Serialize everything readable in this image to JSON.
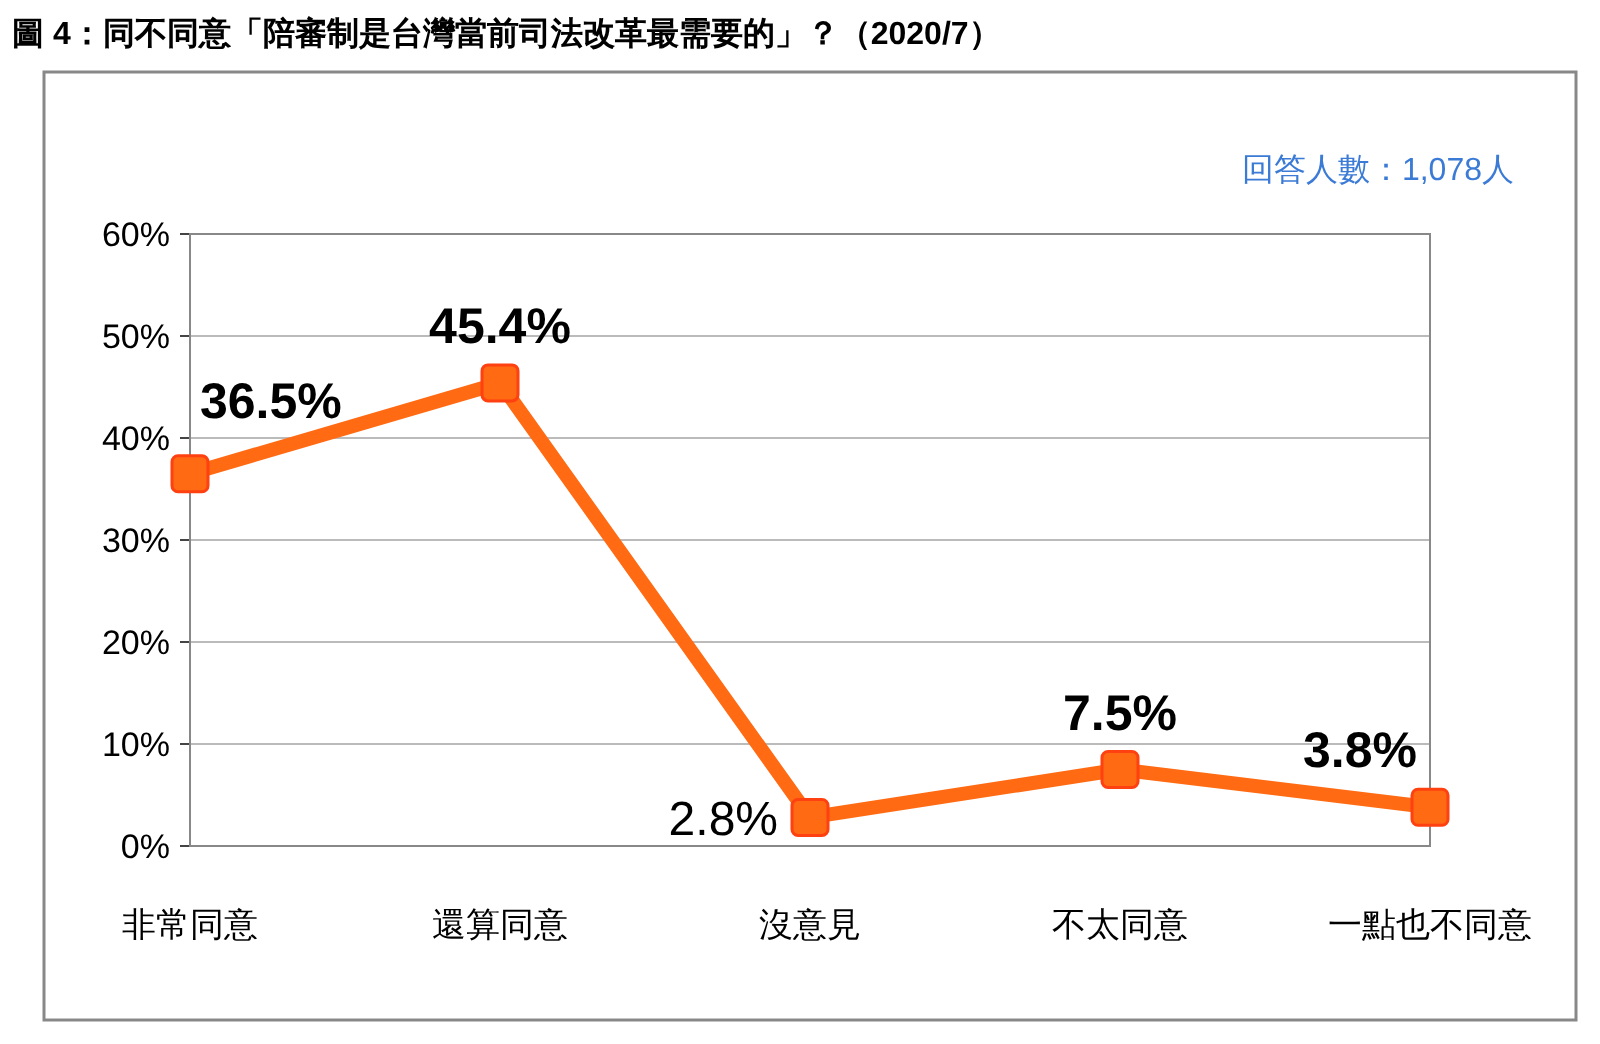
{
  "chart_data": {
    "type": "line",
    "title": "圖 4：同不同意「陪審制是台灣當前司法改革最需要的」？（2020/7）",
    "annotations": [
      "回答人數：1,078人"
    ],
    "categories": [
      "非常同意",
      "還算同意",
      "沒意見",
      "不太同意",
      "一點也不同意"
    ],
    "series": [
      {
        "color": "#ff6a13",
        "values": [
          36.5,
          45.4,
          2.8,
          7.5,
          3.8
        ],
        "value_labels": [
          "36.5%",
          "45.4%",
          "2.8%",
          "7.5%",
          "3.8%"
        ]
      }
    ],
    "ylim": [
      0,
      60
    ],
    "yticks": [
      {
        "value": 0,
        "label": "0%"
      },
      {
        "value": 10,
        "label": "10%"
      },
      {
        "value": 20,
        "label": "20%"
      },
      {
        "value": 30,
        "label": "30%"
      },
      {
        "value": 40,
        "label": "40%"
      },
      {
        "value": 50,
        "label": "50%"
      },
      {
        "value": 60,
        "label": "60%"
      }
    ],
    "grid": "y",
    "marker": "square",
    "line_style": "solid"
  }
}
